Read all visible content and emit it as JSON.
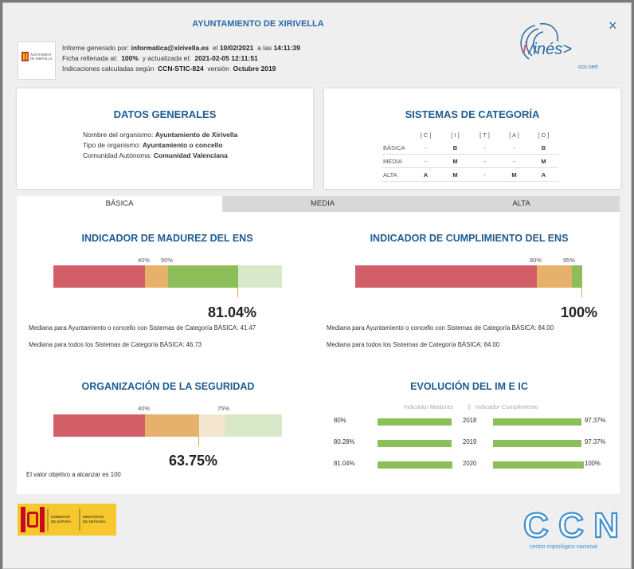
{
  "header": {
    "title": "AYUNTAMIENTO DE XIRIVELLA",
    "line1_prefix": "Informe generado por:",
    "line1_user": "informatica@xirivella.es",
    "line1_mid": "el",
    "line1_date": "10/02/2021",
    "line1_at": "a las",
    "line1_time": "14:11:39",
    "line2_prefix": "Ficha rellenada al:",
    "line2_pct": "100%",
    "line2_mid": "y actualizada el:",
    "line2_date": "2021-02-05 12:11:51",
    "line3_prefix": "Indicaciones calculadas según",
    "line3_guide": "CCN-STIC-824",
    "line3_mid": "versión",
    "line3_version": "Octubre 2019",
    "logo_text": "AJUNTAMENT DE XIRIVELLA",
    "ines_logo": "i/inés>",
    "ines_sub": "ccn cert",
    "close_icon": "×"
  },
  "datos": {
    "title": "DATOS GENERALES",
    "org_label": "Nombre del organismo:",
    "org_value": "Ayuntamiento de Xirivella",
    "type_label": "Tipo de organismo:",
    "type_value": "Ayuntamiento o concello",
    "ca_label": "Comunidad Autónoma:",
    "ca_value": "Comunidad Valenciana"
  },
  "sistemas": {
    "title": "SISTEMAS DE CATEGORÍA",
    "headers": [
      "[ C ]",
      "[ I ]",
      "[ T ]",
      "[ A ]",
      "[ D ]"
    ],
    "rows": [
      {
        "label": "BÁSICA",
        "cells": [
          "-",
          "B",
          "-",
          "-",
          "B"
        ]
      },
      {
        "label": "MEDIA",
        "cells": [
          "-",
          "M",
          "-",
          "-",
          "M"
        ]
      },
      {
        "label": "ALTA",
        "cells": [
          "A",
          "M",
          "-",
          "M",
          "A"
        ]
      }
    ]
  },
  "tabs": [
    "BÁSICA",
    "MEDIA",
    "ALTA"
  ],
  "madurez": {
    "title": "INDICADOR DE MADUREZ DEL ENS",
    "t1": "40%",
    "t2": "50%",
    "value": "81.04%",
    "value_fraction": 0.8104,
    "med1": "Mediana para Ayuntamiento o concello  con Sistemas de Categoría BÁSICA: 41.47",
    "med2": "Mediana para todos los Sistemas de Categoría BÁSICA: 46.73"
  },
  "cumplimiento": {
    "title": "INDICADOR DE CUMPLIMIENTO DEL ENS",
    "t1": "80%",
    "t2": "95%",
    "value": "100%",
    "value_fraction": 1.0,
    "med1": "Mediana para Ayuntamiento o concello  con Sistemas de Categoría BÁSICA: 84.00",
    "med2": "Mediana para todos los Sistemas de Categoría BÁSICA: 84.00"
  },
  "organizacion": {
    "title": "ORGANIZACIÓN DE LA SEGURIDAD",
    "t1": "40%",
    "t2": "75%",
    "value": "63.75%",
    "value_fraction": 0.6375,
    "objetivo": "El valor objetivo a alcanzar es 100"
  },
  "evolucion": {
    "title": "EVOLUCIÓN DEL IM E IC",
    "head_left": "Indicador Madurez",
    "head_sep": "||",
    "head_right": "Indicador Cumplimiento",
    "rows": [
      {
        "im": "80%",
        "year": "2018",
        "ic": "97.37%",
        "im_frac": 0.8,
        "ic_frac": 0.9737
      },
      {
        "im": "80.28%",
        "year": "2019",
        "ic": "97.37%",
        "im_frac": 0.8028,
        "ic_frac": 0.9737
      },
      {
        "im": "81.04%",
        "year": "2020",
        "ic": "100%",
        "im_frac": 0.8104,
        "ic_frac": 1.0
      }
    ]
  },
  "footer": {
    "gob_text": "GOBIERNO DE ESPAÑA",
    "min_text": "MINISTERIO DE DEFENSA",
    "ccn_logo": "CCN",
    "ccn_sub": "centro criptológico nacional"
  },
  "colors": {
    "red": "#d25f67",
    "orange": "#e6b26b",
    "green": "#8cbf5a",
    "light_green": "#d8e8c8",
    "light_orange": "#f5e6d2",
    "title_blue": "#205c92"
  }
}
